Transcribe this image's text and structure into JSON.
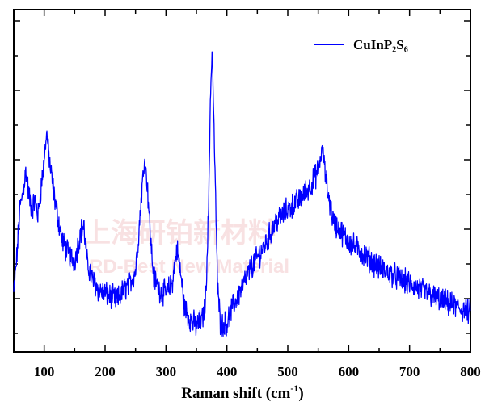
{
  "watermark": {
    "cn": "上海研铂新材料",
    "en": "RD-Best New Material"
  },
  "chart_data": {
    "type": "line",
    "title": "",
    "xlabel": "Raman shift (cm",
    "xlabel_sup": "-1",
    "xlabel_close": ")",
    "ylabel": "",
    "xlim": [
      50,
      800
    ],
    "ylim": [
      0,
      100
    ],
    "xticks": [
      100,
      200,
      300,
      400,
      500,
      600,
      700,
      800
    ],
    "xtick_labels": [
      "100",
      "200",
      "300",
      "400",
      "500",
      "600",
      "700",
      "800"
    ],
    "y_tick_labels_shown": false,
    "grid": false,
    "legend": {
      "position": "top-right",
      "entries": [
        "CuInP₂S₆"
      ]
    },
    "series": [
      {
        "name": "CuInP₂S₆",
        "color": "#0000ff",
        "noise": 3.2,
        "x": [
          50,
          55,
          60,
          65,
          70,
          75,
          80,
          85,
          90,
          95,
          100,
          104,
          110,
          115,
          120,
          130,
          140,
          150,
          160,
          165,
          170,
          180,
          190,
          200,
          210,
          220,
          230,
          240,
          250,
          255,
          260,
          265,
          270,
          275,
          280,
          290,
          300,
          310,
          318,
          325,
          330,
          340,
          350,
          355,
          360,
          365,
          370,
          373,
          376,
          380,
          385,
          390,
          400,
          410,
          420,
          440,
          460,
          480,
          500,
          520,
          540,
          550,
          557,
          565,
          575,
          600,
          650,
          700,
          750,
          800
        ],
        "y": [
          14,
          25,
          40,
          45,
          52,
          44,
          40,
          43,
          38,
          47,
          55,
          64,
          53,
          46,
          40,
          30,
          26,
          24,
          33,
          35,
          24,
          18,
          15,
          14,
          13,
          12,
          15,
          17,
          21,
          32,
          45,
          56,
          46,
          30,
          19,
          15,
          14,
          17,
          28,
          19,
          10,
          6,
          4,
          5,
          6,
          12,
          40,
          75,
          90,
          55,
          15,
          4,
          5,
          10,
          14,
          22,
          28,
          36,
          40,
          43,
          48,
          52,
          59,
          46,
          36,
          30,
          22,
          17,
          12,
          8
        ]
      }
    ]
  }
}
